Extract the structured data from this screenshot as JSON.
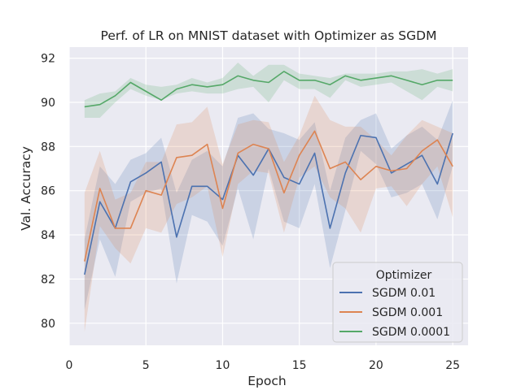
{
  "chart_data": {
    "type": "line",
    "title": "Perf. of LR on MNIST dataset with Optimizer as SGDM",
    "xlabel": "Epoch",
    "ylabel": "Val. Accuracy",
    "xlim": [
      0,
      26
    ],
    "ylim": [
      79.0,
      92.5
    ],
    "xticks": [
      0,
      5,
      10,
      15,
      20,
      25
    ],
    "yticks": [
      80,
      82,
      84,
      86,
      88,
      90,
      92
    ],
    "grid": true,
    "legend": {
      "title": "Optimizer",
      "placement": "bottom-right"
    },
    "x": [
      1,
      2,
      3,
      4,
      5,
      6,
      7,
      8,
      9,
      10,
      11,
      12,
      13,
      14,
      15,
      16,
      17,
      18,
      19,
      20,
      21,
      22,
      23,
      24,
      25
    ],
    "series": [
      {
        "name": "SGDM 0.01",
        "color": "#4c72b0",
        "values": [
          82.2,
          85.5,
          84.3,
          86.4,
          86.8,
          87.3,
          83.9,
          86.2,
          86.2,
          85.6,
          87.6,
          86.7,
          87.9,
          86.6,
          86.3,
          87.7,
          84.3,
          86.8,
          88.5,
          88.4,
          86.8,
          87.2,
          87.6,
          86.3,
          88.6
        ],
        "upper": [
          83.8,
          87.1,
          86.3,
          87.4,
          87.7,
          88.4,
          85.9,
          87.4,
          87.8,
          87.1,
          89.3,
          89.5,
          88.8,
          88.6,
          88.3,
          89.1,
          86.0,
          88.4,
          89.2,
          89.5,
          87.9,
          88.5,
          88.9,
          88.3,
          90.1
        ],
        "lower": [
          80.6,
          83.8,
          82.1,
          85.5,
          85.9,
          86.1,
          81.8,
          84.9,
          84.6,
          83.5,
          86.1,
          83.8,
          87.0,
          84.6,
          84.3,
          86.3,
          82.5,
          85.1,
          87.8,
          87.2,
          85.7,
          85.9,
          86.3,
          84.7,
          87.1
        ]
      },
      {
        "name": "SGDM 0.001",
        "color": "#dd8452",
        "values": [
          82.8,
          86.1,
          84.3,
          84.3,
          86.0,
          85.8,
          87.5,
          87.6,
          88.1,
          85.2,
          87.7,
          88.1,
          87.9,
          85.9,
          87.6,
          88.7,
          87.0,
          87.3,
          86.5,
          87.1,
          86.9,
          87.0,
          87.8,
          88.3,
          87.1
        ],
        "upper": [
          85.9,
          87.8,
          85.6,
          85.9,
          87.3,
          87.3,
          89.0,
          89.1,
          89.8,
          87.2,
          89.0,
          89.2,
          89.1,
          87.3,
          88.5,
          90.3,
          89.2,
          88.9,
          88.9,
          88.3,
          87.6,
          88.5,
          89.2,
          88.9,
          88.6
        ],
        "lower": [
          79.6,
          84.4,
          83.4,
          82.7,
          84.3,
          84.1,
          85.4,
          85.7,
          86.2,
          83.0,
          86.3,
          86.9,
          86.8,
          84.1,
          86.6,
          87.1,
          85.7,
          85.2,
          84.1,
          86.1,
          86.2,
          85.3,
          86.3,
          87.1,
          84.8
        ]
      },
      {
        "name": "SGDM 0.0001",
        "color": "#55a868",
        "values": [
          89.8,
          89.9,
          90.3,
          90.9,
          90.5,
          90.1,
          90.6,
          90.8,
          90.7,
          90.8,
          91.2,
          91.0,
          90.9,
          91.4,
          91.0,
          91.0,
          90.8,
          91.2,
          91.0,
          91.1,
          91.2,
          91.0,
          90.8,
          91.0,
          91.0
        ],
        "upper": [
          90.1,
          90.4,
          90.5,
          91.1,
          90.8,
          90.7,
          90.8,
          91.1,
          90.9,
          91.1,
          91.8,
          91.2,
          91.7,
          91.7,
          91.3,
          91.2,
          91.1,
          91.3,
          91.3,
          91.3,
          91.4,
          91.4,
          91.5,
          91.3,
          91.5
        ],
        "lower": [
          89.3,
          89.3,
          90.0,
          90.6,
          90.3,
          90.1,
          90.4,
          90.5,
          90.4,
          90.4,
          90.6,
          90.7,
          90.0,
          91.0,
          90.6,
          90.6,
          90.2,
          91.0,
          90.7,
          90.8,
          90.9,
          90.5,
          90.1,
          90.7,
          90.5
        ]
      }
    ]
  }
}
